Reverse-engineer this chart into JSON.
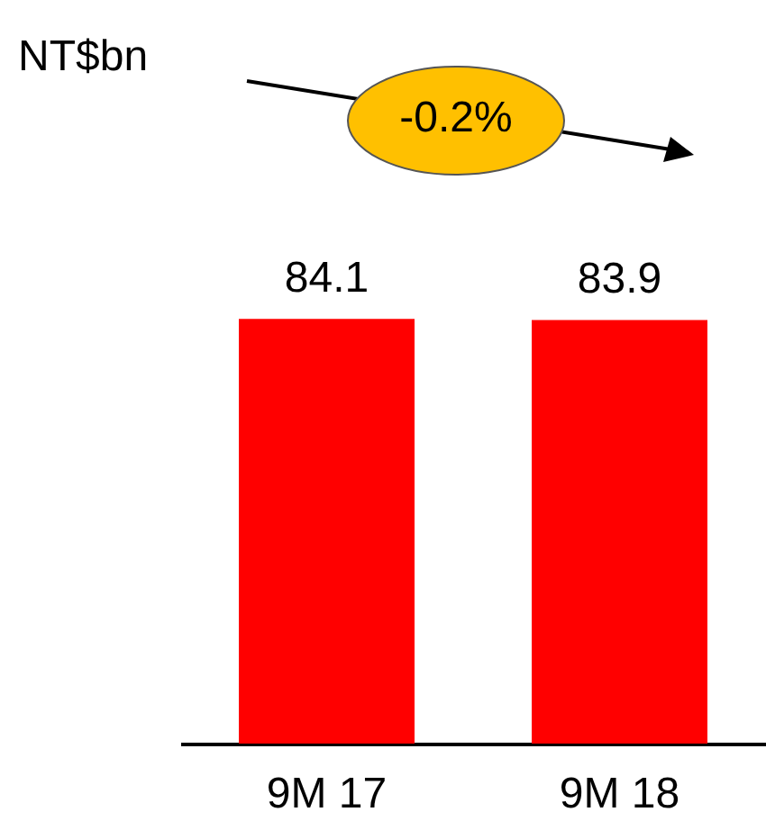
{
  "chart_data": {
    "type": "bar",
    "categories": [
      "9M 17",
      "9M 18"
    ],
    "values": [
      84.1,
      83.9
    ],
    "color": "#ff0000",
    "data_labels": true,
    "annotations": [
      "NT$bn",
      "-0.2%"
    ]
  }
}
